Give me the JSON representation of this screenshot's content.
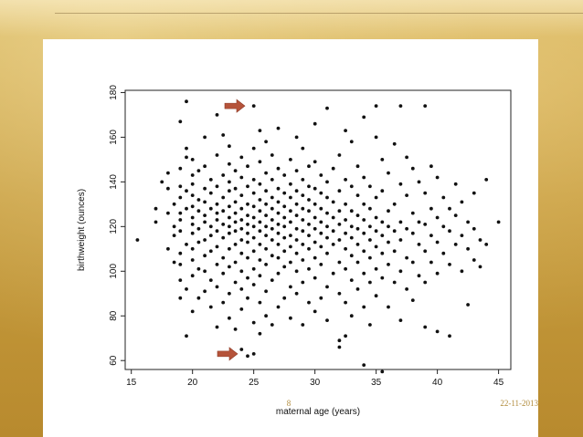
{
  "slide": {
    "page_number": "8",
    "date": "22-11-2013"
  },
  "annotations": [
    {
      "type": "arrow",
      "color": "#b5533a",
      "points_to_y": 174
    },
    {
      "type": "arrow",
      "color": "#b5533a",
      "points_to_y": 63
    }
  ],
  "chart_data": {
    "type": "scatter",
    "xlabel": "maternal age (years)",
    "ylabel": "birthweight (ounces)",
    "xlim": [
      14.5,
      46
    ],
    "ylim": [
      56,
      181
    ],
    "xticks": [
      15,
      20,
      25,
      30,
      35,
      40,
      45
    ],
    "yticks": [
      60,
      80,
      100,
      120,
      140,
      160,
      180
    ],
    "grid": false,
    "legend": "none",
    "point_color": "#111111",
    "points": [
      [
        15.5,
        114
      ],
      [
        17,
        122
      ],
      [
        17,
        128
      ],
      [
        17.5,
        140
      ],
      [
        18,
        110
      ],
      [
        18,
        126
      ],
      [
        18,
        137
      ],
      [
        18,
        144
      ],
      [
        18.5,
        104
      ],
      [
        18.5,
        116
      ],
      [
        18.5,
        120
      ],
      [
        18.5,
        130
      ],
      [
        19,
        88
      ],
      [
        19,
        96
      ],
      [
        19,
        103
      ],
      [
        19,
        108
      ],
      [
        19,
        118
      ],
      [
        19,
        123
      ],
      [
        19,
        126
      ],
      [
        19,
        133
      ],
      [
        19,
        138
      ],
      [
        19,
        146
      ],
      [
        19,
        167
      ],
      [
        19.5,
        71
      ],
      [
        19.5,
        92
      ],
      [
        19.5,
        112
      ],
      [
        19.5,
        128
      ],
      [
        19.5,
        136
      ],
      [
        19.5,
        151
      ],
      [
        19.5,
        155
      ],
      [
        19.5,
        176
      ],
      [
        20,
        82
      ],
      [
        20,
        98
      ],
      [
        20,
        105
      ],
      [
        20,
        110
      ],
      [
        20,
        117
      ],
      [
        20,
        121
      ],
      [
        20,
        124
      ],
      [
        20,
        129
      ],
      [
        20,
        134
      ],
      [
        20,
        139
      ],
      [
        20,
        143
      ],
      [
        20,
        150
      ],
      [
        20.5,
        88
      ],
      [
        20.5,
        101
      ],
      [
        20.5,
        113
      ],
      [
        20.5,
        119
      ],
      [
        20.5,
        127
      ],
      [
        20.5,
        132
      ],
      [
        20.5,
        145
      ],
      [
        21,
        91
      ],
      [
        21,
        100
      ],
      [
        21,
        107
      ],
      [
        21,
        114
      ],
      [
        21,
        122
      ],
      [
        21,
        125
      ],
      [
        21,
        131
      ],
      [
        21,
        137
      ],
      [
        21,
        147
      ],
      [
        21,
        160
      ],
      [
        21.5,
        84
      ],
      [
        21.5,
        96
      ],
      [
        21.5,
        109
      ],
      [
        21.5,
        116
      ],
      [
        21.5,
        120
      ],
      [
        21.5,
        128
      ],
      [
        21.5,
        135
      ],
      [
        21.5,
        141
      ],
      [
        22,
        75
      ],
      [
        22,
        93
      ],
      [
        22,
        103
      ],
      [
        22,
        111
      ],
      [
        22,
        118
      ],
      [
        22,
        123
      ],
      [
        22,
        126
      ],
      [
        22,
        130
      ],
      [
        22,
        138
      ],
      [
        22,
        152
      ],
      [
        22,
        170
      ],
      [
        22.5,
        86
      ],
      [
        22.5,
        99
      ],
      [
        22.5,
        106
      ],
      [
        22.5,
        115
      ],
      [
        22.5,
        121
      ],
      [
        22.5,
        127
      ],
      [
        22.5,
        133
      ],
      [
        22.5,
        143
      ],
      [
        22.5,
        161
      ],
      [
        23,
        79
      ],
      [
        23,
        90
      ],
      [
        23,
        102
      ],
      [
        23,
        110
      ],
      [
        23,
        117
      ],
      [
        23,
        120
      ],
      [
        23,
        124
      ],
      [
        23,
        129
      ],
      [
        23,
        136
      ],
      [
        23,
        140
      ],
      [
        23,
        148
      ],
      [
        23,
        156
      ],
      [
        23.5,
        74
      ],
      [
        23.5,
        95
      ],
      [
        23.5,
        104
      ],
      [
        23.5,
        112
      ],
      [
        23.5,
        118
      ],
      [
        23.5,
        122
      ],
      [
        23.5,
        126
      ],
      [
        23.5,
        131
      ],
      [
        23.5,
        137
      ],
      [
        23.5,
        145
      ],
      [
        24,
        65
      ],
      [
        24,
        83
      ],
      [
        24,
        92
      ],
      [
        24,
        100
      ],
      [
        24,
        108
      ],
      [
        24,
        114
      ],
      [
        24,
        119
      ],
      [
        24,
        123
      ],
      [
        24,
        128
      ],
      [
        24,
        134
      ],
      [
        24,
        142
      ],
      [
        24,
        151
      ],
      [
        24.5,
        62
      ],
      [
        24.5,
        88
      ],
      [
        24.5,
        97
      ],
      [
        24.5,
        106
      ],
      [
        24.5,
        113
      ],
      [
        24.5,
        117
      ],
      [
        24.5,
        121
      ],
      [
        24.5,
        125
      ],
      [
        24.5,
        130
      ],
      [
        24.5,
        138
      ],
      [
        24.5,
        147
      ],
      [
        25,
        63
      ],
      [
        25,
        77
      ],
      [
        25,
        94
      ],
      [
        25,
        101
      ],
      [
        25,
        109
      ],
      [
        25,
        115
      ],
      [
        25,
        120
      ],
      [
        25,
        124
      ],
      [
        25,
        129
      ],
      [
        25,
        135
      ],
      [
        25,
        141
      ],
      [
        25,
        155
      ],
      [
        25,
        174
      ],
      [
        25.5,
        72
      ],
      [
        25.5,
        86
      ],
      [
        25.5,
        98
      ],
      [
        25.5,
        105
      ],
      [
        25.5,
        112
      ],
      [
        25.5,
        118
      ],
      [
        25.5,
        122
      ],
      [
        25.5,
        127
      ],
      [
        25.5,
        132
      ],
      [
        25.5,
        139
      ],
      [
        25.5,
        149
      ],
      [
        25.5,
        163
      ],
      [
        26,
        80
      ],
      [
        26,
        91
      ],
      [
        26,
        103
      ],
      [
        26,
        110
      ],
      [
        26,
        116
      ],
      [
        26,
        120
      ],
      [
        26,
        125
      ],
      [
        26,
        130
      ],
      [
        26,
        136
      ],
      [
        26,
        144
      ],
      [
        26,
        158
      ],
      [
        26.5,
        76
      ],
      [
        26.5,
        96
      ],
      [
        26.5,
        107
      ],
      [
        26.5,
        114
      ],
      [
        26.5,
        119
      ],
      [
        26.5,
        123
      ],
      [
        26.5,
        128
      ],
      [
        26.5,
        133
      ],
      [
        26.5,
        141
      ],
      [
        26.5,
        152
      ],
      [
        27,
        84
      ],
      [
        27,
        99
      ],
      [
        27,
        106
      ],
      [
        27,
        112
      ],
      [
        27,
        117
      ],
      [
        27,
        121
      ],
      [
        27,
        126
      ],
      [
        27,
        131
      ],
      [
        27,
        137
      ],
      [
        27,
        146
      ],
      [
        27,
        164
      ],
      [
        27.5,
        88
      ],
      [
        27.5,
        102
      ],
      [
        27.5,
        109
      ],
      [
        27.5,
        115
      ],
      [
        27.5,
        120
      ],
      [
        27.5,
        124
      ],
      [
        27.5,
        129
      ],
      [
        27.5,
        135
      ],
      [
        27.5,
        143
      ],
      [
        28,
        79
      ],
      [
        28,
        93
      ],
      [
        28,
        104
      ],
      [
        28,
        111
      ],
      [
        28,
        116
      ],
      [
        28,
        122
      ],
      [
        28,
        127
      ],
      [
        28,
        133
      ],
      [
        28,
        139
      ],
      [
        28,
        150
      ],
      [
        28.5,
        90
      ],
      [
        28.5,
        100
      ],
      [
        28.5,
        108
      ],
      [
        28.5,
        114
      ],
      [
        28.5,
        119
      ],
      [
        28.5,
        125
      ],
      [
        28.5,
        130
      ],
      [
        28.5,
        136
      ],
      [
        28.5,
        145
      ],
      [
        28.5,
        160
      ],
      [
        29,
        76
      ],
      [
        29,
        95
      ],
      [
        29,
        105
      ],
      [
        29,
        112
      ],
      [
        29,
        118
      ],
      [
        29,
        123
      ],
      [
        29,
        128
      ],
      [
        29,
        134
      ],
      [
        29,
        141
      ],
      [
        29,
        155
      ],
      [
        29.5,
        86
      ],
      [
        29.5,
        101
      ],
      [
        29.5,
        110
      ],
      [
        29.5,
        116
      ],
      [
        29.5,
        121
      ],
      [
        29.5,
        127
      ],
      [
        29.5,
        132
      ],
      [
        29.5,
        138
      ],
      [
        29.5,
        147
      ],
      [
        30,
        82
      ],
      [
        30,
        97
      ],
      [
        30,
        106
      ],
      [
        30,
        113
      ],
      [
        30,
        119
      ],
      [
        30,
        124
      ],
      [
        30,
        130
      ],
      [
        30,
        137
      ],
      [
        30,
        149
      ],
      [
        30,
        166
      ],
      [
        30.5,
        88
      ],
      [
        30.5,
        103
      ],
      [
        30.5,
        111
      ],
      [
        30.5,
        117
      ],
      [
        30.5,
        122
      ],
      [
        30.5,
        128
      ],
      [
        30.5,
        135
      ],
      [
        30.5,
        143
      ],
      [
        31,
        78
      ],
      [
        31,
        93
      ],
      [
        31,
        108
      ],
      [
        31,
        115
      ],
      [
        31,
        120
      ],
      [
        31,
        126
      ],
      [
        31,
        133
      ],
      [
        31,
        140
      ],
      [
        31,
        173
      ],
      [
        31.5,
        99
      ],
      [
        31.5,
        112
      ],
      [
        31.5,
        118
      ],
      [
        31.5,
        124
      ],
      [
        31.5,
        131
      ],
      [
        31.5,
        146
      ],
      [
        32,
        66
      ],
      [
        32,
        69
      ],
      [
        32,
        90
      ],
      [
        32,
        104
      ],
      [
        32,
        114
      ],
      [
        32,
        121
      ],
      [
        32,
        127
      ],
      [
        32,
        136
      ],
      [
        32,
        152
      ],
      [
        32.5,
        71
      ],
      [
        32.5,
        86
      ],
      [
        32.5,
        101
      ],
      [
        32.5,
        110
      ],
      [
        32.5,
        117
      ],
      [
        32.5,
        123
      ],
      [
        32.5,
        130
      ],
      [
        32.5,
        141
      ],
      [
        32.5,
        163
      ],
      [
        33,
        80
      ],
      [
        33,
        96
      ],
      [
        33,
        107
      ],
      [
        33,
        115
      ],
      [
        33,
        120
      ],
      [
        33,
        127
      ],
      [
        33,
        138
      ],
      [
        33,
        158
      ],
      [
        33.5,
        92
      ],
      [
        33.5,
        104
      ],
      [
        33.5,
        112
      ],
      [
        33.5,
        119
      ],
      [
        33.5,
        125
      ],
      [
        33.5,
        134
      ],
      [
        33.5,
        147
      ],
      [
        34,
        58
      ],
      [
        34,
        84
      ],
      [
        34,
        99
      ],
      [
        34,
        109
      ],
      [
        34,
        117
      ],
      [
        34,
        123
      ],
      [
        34,
        130
      ],
      [
        34,
        142
      ],
      [
        34,
        169
      ],
      [
        34.5,
        76
      ],
      [
        34.5,
        95
      ],
      [
        34.5,
        106
      ],
      [
        34.5,
        114
      ],
      [
        34.5,
        120
      ],
      [
        34.5,
        128
      ],
      [
        34.5,
        138
      ],
      [
        35,
        89
      ],
      [
        35,
        101
      ],
      [
        35,
        111
      ],
      [
        35,
        118
      ],
      [
        35,
        124
      ],
      [
        35,
        133
      ],
      [
        35,
        160
      ],
      [
        35,
        174
      ],
      [
        35.5,
        55
      ],
      [
        35.5,
        97
      ],
      [
        35.5,
        108
      ],
      [
        35.5,
        116
      ],
      [
        35.5,
        122
      ],
      [
        35.5,
        136
      ],
      [
        35.5,
        150
      ],
      [
        36,
        84
      ],
      [
        36,
        103
      ],
      [
        36,
        113
      ],
      [
        36,
        120
      ],
      [
        36,
        127
      ],
      [
        36,
        144
      ],
      [
        36.5,
        95
      ],
      [
        36.5,
        109
      ],
      [
        36.5,
        118
      ],
      [
        36.5,
        130
      ],
      [
        36.5,
        157
      ],
      [
        37,
        78
      ],
      [
        37,
        100
      ],
      [
        37,
        114
      ],
      [
        37,
        122
      ],
      [
        37,
        139
      ],
      [
        37,
        174
      ],
      [
        37.5,
        92
      ],
      [
        37.5,
        106
      ],
      [
        37.5,
        119
      ],
      [
        37.5,
        134
      ],
      [
        37.5,
        151
      ],
      [
        38,
        87
      ],
      [
        38,
        104
      ],
      [
        38,
        117
      ],
      [
        38,
        126
      ],
      [
        38,
        146
      ],
      [
        38.5,
        98
      ],
      [
        38.5,
        112
      ],
      [
        38.5,
        122
      ],
      [
        38.5,
        140
      ],
      [
        39,
        75
      ],
      [
        39,
        95
      ],
      [
        39,
        109
      ],
      [
        39,
        121
      ],
      [
        39,
        135
      ],
      [
        39,
        174
      ],
      [
        39.5,
        104
      ],
      [
        39.5,
        116
      ],
      [
        39.5,
        128
      ],
      [
        39.5,
        147
      ],
      [
        40,
        73
      ],
      [
        40,
        99
      ],
      [
        40,
        113
      ],
      [
        40,
        124
      ],
      [
        40,
        142
      ],
      [
        40.5,
        108
      ],
      [
        40.5,
        120
      ],
      [
        40.5,
        133
      ],
      [
        41,
        71
      ],
      [
        41,
        103
      ],
      [
        41,
        118
      ],
      [
        41,
        128
      ],
      [
        41.5,
        112
      ],
      [
        41.5,
        125
      ],
      [
        41.5,
        139
      ],
      [
        42,
        100
      ],
      [
        42,
        116
      ],
      [
        42,
        131
      ],
      [
        42.5,
        85
      ],
      [
        42.5,
        110
      ],
      [
        42.5,
        122
      ],
      [
        43,
        105
      ],
      [
        43,
        119
      ],
      [
        43,
        135
      ],
      [
        43.5,
        102
      ],
      [
        43.5,
        114
      ],
      [
        44,
        112
      ],
      [
        44,
        141
      ],
      [
        45,
        122
      ]
    ]
  }
}
